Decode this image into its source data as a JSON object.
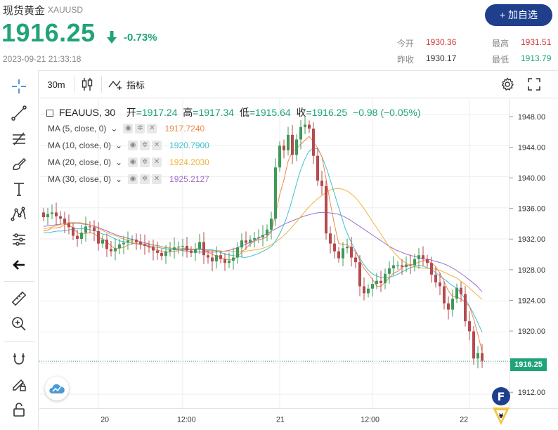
{
  "quote": {
    "name": "现货黄金",
    "code": "XAUUSD",
    "price": "1916.25",
    "change_pct": "-0.73%",
    "timestamp": "2023-09-21 21:33:18",
    "add_button": "+ 加自选",
    "stats": [
      {
        "label": "今开",
        "value": "1930.36",
        "color": "#d03b3b"
      },
      {
        "label": "最高",
        "value": "1931.51",
        "color": "#d03b3b"
      },
      {
        "label": "昨收",
        "value": "1930.17",
        "color": "#333333"
      },
      {
        "label": "最低",
        "value": "1913.79",
        "color": "#21a37a"
      }
    ]
  },
  "toolbar": {
    "interval": "30m",
    "indicators": "指标"
  },
  "legend": {
    "symbol": "FEAUUS, 30",
    "open_label": "开",
    "open": "=1917.24",
    "high_label": "高",
    "high": "=1917.34",
    "low_label": "低",
    "low": "=1915.64",
    "close_label": "收",
    "close": "=1916.25",
    "change": "−0.98 (−0.05%)",
    "ma": [
      {
        "label": "MA (5, close, 0)",
        "value": "1917.7240",
        "color": "#f0884a"
      },
      {
        "label": "MA (10, close, 0)",
        "value": "1920.7900",
        "color": "#3cc0d0"
      },
      {
        "label": "MA (20, close, 0)",
        "value": "1924.2030",
        "color": "#f2b23a"
      },
      {
        "label": "MA (30, close, 0)",
        "value": "1925.2127",
        "color": "#9b6fc9"
      }
    ]
  },
  "colors": {
    "up": "#3f9a5a",
    "down": "#b64a4f",
    "accent": "#1f3f8d"
  },
  "chart_data": {
    "type": "candlestick",
    "interval": "30m",
    "y_ticks": [
      "1948.00",
      "1944.00",
      "1940.00",
      "1936.00",
      "1932.00",
      "1928.00",
      "1924.00",
      "1920.00",
      "1916.00",
      "1912.00"
    ],
    "ylim": [
      1910.2,
      1950.0
    ],
    "x_ticks": [
      {
        "label": "20",
        "index": 13
      },
      {
        "label": "12:00",
        "index": 33
      },
      {
        "label": "21",
        "index": 56
      },
      {
        "label": "12:00",
        "index": 78
      },
      {
        "label": "22",
        "index": 101
      }
    ],
    "x_count": 105,
    "current_price": "1916.25",
    "close": [
      1934.8,
      1935.2,
      1935.4,
      1934.9,
      1934.6,
      1934.0,
      1933.5,
      1932.4,
      1932.0,
      1932.8,
      1933.6,
      1933.5,
      1933.0,
      1931.4,
      1931.9,
      1930.7,
      1930.4,
      1930.8,
      1931.3,
      1931.5,
      1931.8,
      1931.9,
      1931.6,
      1931.3,
      1931.1,
      1931.0,
      1930.5,
      1930.2,
      1929.8,
      1930.4,
      1930.6,
      1930.9,
      1931.0,
      1931.1,
      1930.5,
      1930.2,
      1930.7,
      1931.6,
      1929.9,
      1929.6,
      1929.1,
      1929.9,
      1929.4,
      1928.9,
      1929.2,
      1929.6,
      1930.9,
      1931.8,
      1931.5,
      1931.9,
      1932.1,
      1932.2,
      1932.5,
      1933.2,
      1934.6,
      1941.2,
      1944.0,
      1943.4,
      1945.4,
      1942.8,
      1944.8,
      1946.4,
      1946.7,
      1946.2,
      1942.7,
      1939.5,
      1938.8,
      1932.7,
      1931.4,
      1930.4,
      1929.5,
      1930.8,
      1931.0,
      1929.6,
      1929.0,
      1925.9,
      1925.0,
      1925.6,
      1926.2,
      1926.6,
      1926.3,
      1927.5,
      1928.2,
      1928.6,
      1928.6,
      1928.4,
      1928.7,
      1928.6,
      1929.4,
      1929.9,
      1929.4,
      1928.9,
      1927.4,
      1926.4,
      1925.9,
      1923.7,
      1922.9,
      1924.3,
      1925.7,
      1924.9,
      1921.4,
      1920.1,
      1916.6,
      1917.3,
      1916.3
    ],
    "ma5": {
      "start": 0,
      "values": [
        1933.0,
        1933.1,
        1933.4,
        1933.4,
        1933.5,
        1933.9,
        1933.8,
        1933.4,
        1932.8,
        1932.6,
        1932.7,
        1932.8,
        1932.7,
        1932.2,
        1932.0,
        1931.6,
        1931.1,
        1930.7,
        1930.8,
        1930.9,
        1931.2,
        1931.4,
        1931.4,
        1931.3,
        1931.2,
        1930.9,
        1930.8,
        1930.6,
        1930.4,
        1930.3,
        1930.3,
        1930.4,
        1930.5,
        1930.8,
        1930.8,
        1930.6,
        1930.7,
        1930.8,
        1930.6,
        1930.3,
        1930.0,
        1929.8,
        1929.6,
        1929.4,
        1929.3,
        1929.3,
        1929.7,
        1930.3,
        1930.8,
        1931.3,
        1931.7,
        1931.9,
        1932.0,
        1932.3,
        1932.9,
        1935.1,
        1937.7,
        1939.6,
        1942.0,
        1943.3,
        1943.6,
        1944.2,
        1944.7,
        1945.2,
        1944.5,
        1943.7,
        1942.6,
        1939.7,
        1936.6,
        1933.8,
        1931.4,
        1931.3,
        1931.3,
        1930.7,
        1930.4,
        1929.2,
        1928.2,
        1927.5,
        1926.8,
        1925.9,
        1925.9,
        1926.4,
        1927.0,
        1927.6,
        1927.8,
        1928.3,
        1928.6,
        1928.6,
        1928.8,
        1929.0,
        1929.2,
        1929.2,
        1928.9,
        1928.4,
        1927.6,
        1926.5,
        1925.3,
        1924.6,
        1924.5,
        1924.3,
        1923.8,
        1923.3,
        1921.7,
        1919.7,
        1917.5
      ]
    },
    "ma10": {
      "start": 0,
      "values": [
        1932.8,
        1932.8,
        1932.9,
        1933.0,
        1933.0,
        1933.1,
        1933.2,
        1933.3,
        1933.3,
        1933.3,
        1933.2,
        1933.1,
        1932.9,
        1932.6,
        1932.5,
        1932.2,
        1931.9,
        1931.7,
        1931.6,
        1931.5,
        1931.4,
        1931.3,
        1931.2,
        1931.1,
        1931.0,
        1930.9,
        1930.8,
        1930.7,
        1930.6,
        1930.6,
        1930.6,
        1930.6,
        1930.6,
        1930.6,
        1930.6,
        1930.6,
        1930.6,
        1930.6,
        1930.4,
        1930.2,
        1930.0,
        1929.9,
        1929.8,
        1929.7,
        1929.6,
        1929.7,
        1929.9,
        1930.1,
        1930.4,
        1930.7,
        1931.1,
        1931.9,
        1933.0,
        1934.4,
        1936.2,
        1938.3,
        1940.4,
        1942.0,
        1943.2,
        1943.7,
        1943.6,
        1942.5,
        1941.0,
        1939.1,
        1937.2,
        1935.3,
        1933.4,
        1932.0,
        1930.8,
        1929.7,
        1928.8,
        1928.0,
        1927.5,
        1927.2,
        1927.0,
        1927.0,
        1927.1,
        1927.3,
        1927.6,
        1927.9,
        1928.2,
        1928.4,
        1928.6,
        1928.5,
        1928.3,
        1928.0,
        1927.6,
        1927.1,
        1926.7,
        1926.2,
        1925.8,
        1925.3,
        1924.5,
        1923.6,
        1922.5,
        1921.3,
        1920.0
      ]
    },
    "ma20": {
      "start": 0,
      "values": [
        1933.3,
        1933.4,
        1933.6,
        1933.8,
        1934.0,
        1934.1,
        1934.1,
        1934.1,
        1934.0,
        1933.8,
        1933.5,
        1933.2,
        1932.9,
        1932.6,
        1932.4,
        1932.1,
        1931.9,
        1931.7,
        1931.5,
        1931.4,
        1931.3,
        1931.2,
        1931.1,
        1931.0,
        1930.9,
        1930.8,
        1930.8,
        1930.7,
        1930.7,
        1930.7,
        1930.6,
        1930.6,
        1930.5,
        1930.5,
        1930.5,
        1930.4,
        1930.4,
        1930.4,
        1930.4,
        1930.4,
        1930.5,
        1930.6,
        1930.7,
        1930.9,
        1931.2,
        1931.6,
        1932.1,
        1932.7,
        1933.4,
        1934.2,
        1935.0,
        1935.8,
        1936.5,
        1937.1,
        1937.6,
        1938.1,
        1938.4,
        1938.5,
        1938.4,
        1938.1,
        1937.6,
        1936.9,
        1936.0,
        1935.0,
        1934.0,
        1933.0,
        1932.0,
        1931.0,
        1930.2,
        1929.5,
        1929.0,
        1928.6,
        1928.4,
        1928.3,
        1928.2,
        1928.2,
        1928.1,
        1927.9,
        1927.6,
        1927.3,
        1927.0,
        1926.5,
        1926.0,
        1925.4,
        1924.8,
        1924.2
      ]
    },
    "ma30": {
      "start": 0,
      "values": [
        1933.6,
        1933.7,
        1933.8,
        1933.9,
        1934.0,
        1934.0,
        1934.0,
        1933.9,
        1933.8,
        1933.6,
        1933.3,
        1933.0,
        1932.7,
        1932.4,
        1932.2,
        1932.0,
        1931.8,
        1931.6,
        1931.4,
        1931.2,
        1931.1,
        1930.9,
        1930.8,
        1930.7,
        1930.5,
        1930.4,
        1930.3,
        1930.3,
        1930.3,
        1930.3,
        1930.3,
        1930.4,
        1930.5,
        1930.7,
        1931.0,
        1931.3,
        1931.6,
        1932.0,
        1932.4,
        1932.8,
        1933.2,
        1933.6,
        1934.0,
        1934.3,
        1934.6,
        1934.9,
        1935.1,
        1935.3,
        1935.4,
        1935.4,
        1935.3,
        1935.2,
        1934.9,
        1934.5,
        1934.0,
        1933.5,
        1933.0,
        1932.5,
        1932.0,
        1931.5,
        1931.0,
        1930.6,
        1930.3,
        1930.0,
        1929.8,
        1929.6,
        1929.4,
        1929.3,
        1929.1,
        1928.9,
        1928.6,
        1928.2,
        1927.7,
        1927.2,
        1926.6,
        1926.0,
        1925.2
      ]
    }
  }
}
